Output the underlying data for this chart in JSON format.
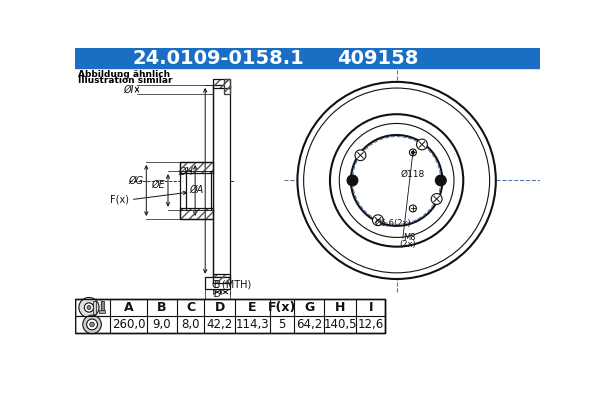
{
  "title_part1": "24.0109-0158.1",
  "title_part2": "409158",
  "title_bg": "#1a6fc4",
  "title_fg": "#ffffff",
  "bg_color": "#ffffff",
  "note_line1": "Abbildung ähnlich",
  "note_line2": "Illustration similar",
  "table_headers": [
    "A",
    "B",
    "C",
    "D",
    "E",
    "F(x)",
    "G",
    "H",
    "I"
  ],
  "table_values": [
    "260,0",
    "9,0",
    "8,0",
    "42,2",
    "114,3",
    "5",
    "64,2",
    "140,5",
    "12,6"
  ],
  "draw_color": "#111111",
  "dim_color": "#111111",
  "crosshair_color": "#5577aa"
}
